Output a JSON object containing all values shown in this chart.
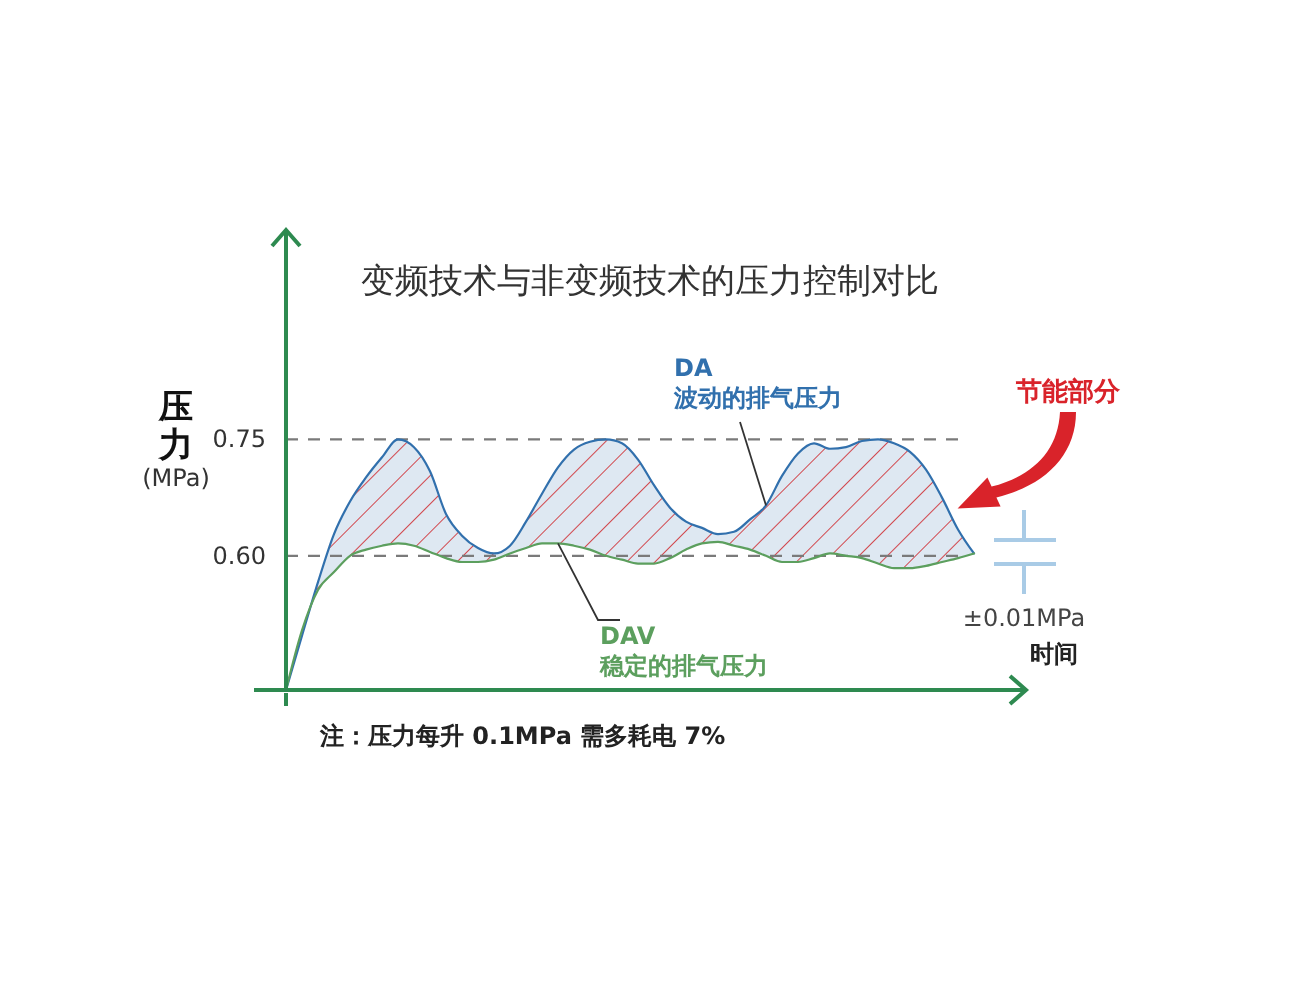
{
  "chart_data": {
    "type": "line",
    "title": "变频技术与非变频技术的压力控制对比",
    "xlabel": "时间",
    "ylabel": "压力\n(MPa)",
    "categories": [
      null,
      null,
      null,
      null,
      null,
      null,
      null,
      null,
      null,
      null,
      null,
      null,
      null,
      null,
      null,
      null,
      null,
      null,
      null,
      null,
      null,
      null,
      null,
      null,
      null,
      null,
      null,
      null,
      null,
      null,
      null,
      null,
      null,
      null,
      null,
      null,
      null,
      null,
      null,
      null,
      null,
      null,
      null,
      null
    ],
    "series": [
      {
        "name": "DA\n波动的排气压力",
        "color": "#3170ad",
        "values": [
          0.427,
          0.497,
          0.566,
          0.628,
          0.67,
          0.701,
          0.727,
          0.75,
          0.74,
          0.709,
          0.654,
          0.626,
          0.61,
          0.603,
          0.613,
          0.644,
          0.68,
          0.714,
          0.737,
          0.747,
          0.75,
          0.745,
          0.724,
          0.691,
          0.662,
          0.644,
          0.636,
          0.628,
          0.631,
          0.647,
          0.665,
          0.703,
          0.732,
          0.745,
          0.738,
          0.74,
          0.748,
          0.75,
          0.745,
          0.734,
          0.711,
          0.675,
          0.634,
          0.603
        ],
        "lower": [
          0.427,
          0.504,
          0.556,
          0.579,
          0.6,
          0.608,
          0.613,
          0.616,
          0.613,
          0.605,
          0.597,
          0.592,
          0.592,
          0.595,
          0.603,
          0.61,
          0.616,
          0.616,
          0.613,
          0.608,
          0.6,
          0.595,
          0.59,
          0.59,
          0.597,
          0.608,
          0.616,
          0.618,
          0.613,
          0.608,
          0.6,
          0.592,
          0.592,
          0.597,
          0.603,
          0.6,
          0.597,
          0.59,
          0.584,
          0.584,
          0.587,
          0.592,
          0.597,
          0.603
        ],
        "upper": [
          0.427,
          0.497,
          0.566,
          0.628,
          0.67,
          0.701,
          0.727,
          0.75,
          0.74,
          0.709,
          0.654,
          0.626,
          0.61,
          0.603,
          0.613,
          0.644,
          0.68,
          0.714,
          0.737,
          0.747,
          0.75,
          0.745,
          0.724,
          0.691,
          0.662,
          0.644,
          0.636,
          0.628,
          0.631,
          0.647,
          0.665,
          0.703,
          0.732,
          0.745,
          0.738,
          0.74,
          0.748,
          0.75,
          0.745,
          0.734,
          0.711,
          0.675,
          0.634,
          0.603
        ]
      },
      {
        "name": "DAV\n稳定的排气压力",
        "color": "#5c9f5e",
        "values": [
          0.427,
          0.504,
          0.556,
          0.579,
          0.6,
          0.608,
          0.613,
          0.616,
          0.613,
          0.605,
          0.597,
          0.592,
          0.592,
          0.595,
          0.603,
          0.61,
          0.616,
          0.616,
          0.613,
          0.608,
          0.6,
          0.595,
          0.59,
          0.59,
          0.597,
          0.608,
          0.616,
          0.618,
          0.613,
          0.608,
          0.6,
          0.592,
          0.592,
          0.597,
          0.603,
          0.6,
          0.597,
          0.59,
          0.584,
          0.584,
          0.587,
          0.592,
          0.597,
          0.603
        ]
      }
    ],
    "ylim": [
      0.427,
      1.02
    ],
    "yticks": [
      0.75,
      {
        "value": 0.6,
        "label": "0.60"
      }
    ],
    "tick_labels": "y",
    "ref_lines": [
      {
        "axis": "y",
        "value": 0.75,
        "color": "#7a7a7a",
        "line_style": "dashed"
      },
      {
        "axis": "y",
        "value": 0.6,
        "color": "#7a7a7a",
        "line_style": "dashed"
      }
    ],
    "annotations": [
      "节能部分",
      "±0.01MPa",
      "注：压力每升 0.1MPa 需多耗电 7%"
    ]
  }
}
